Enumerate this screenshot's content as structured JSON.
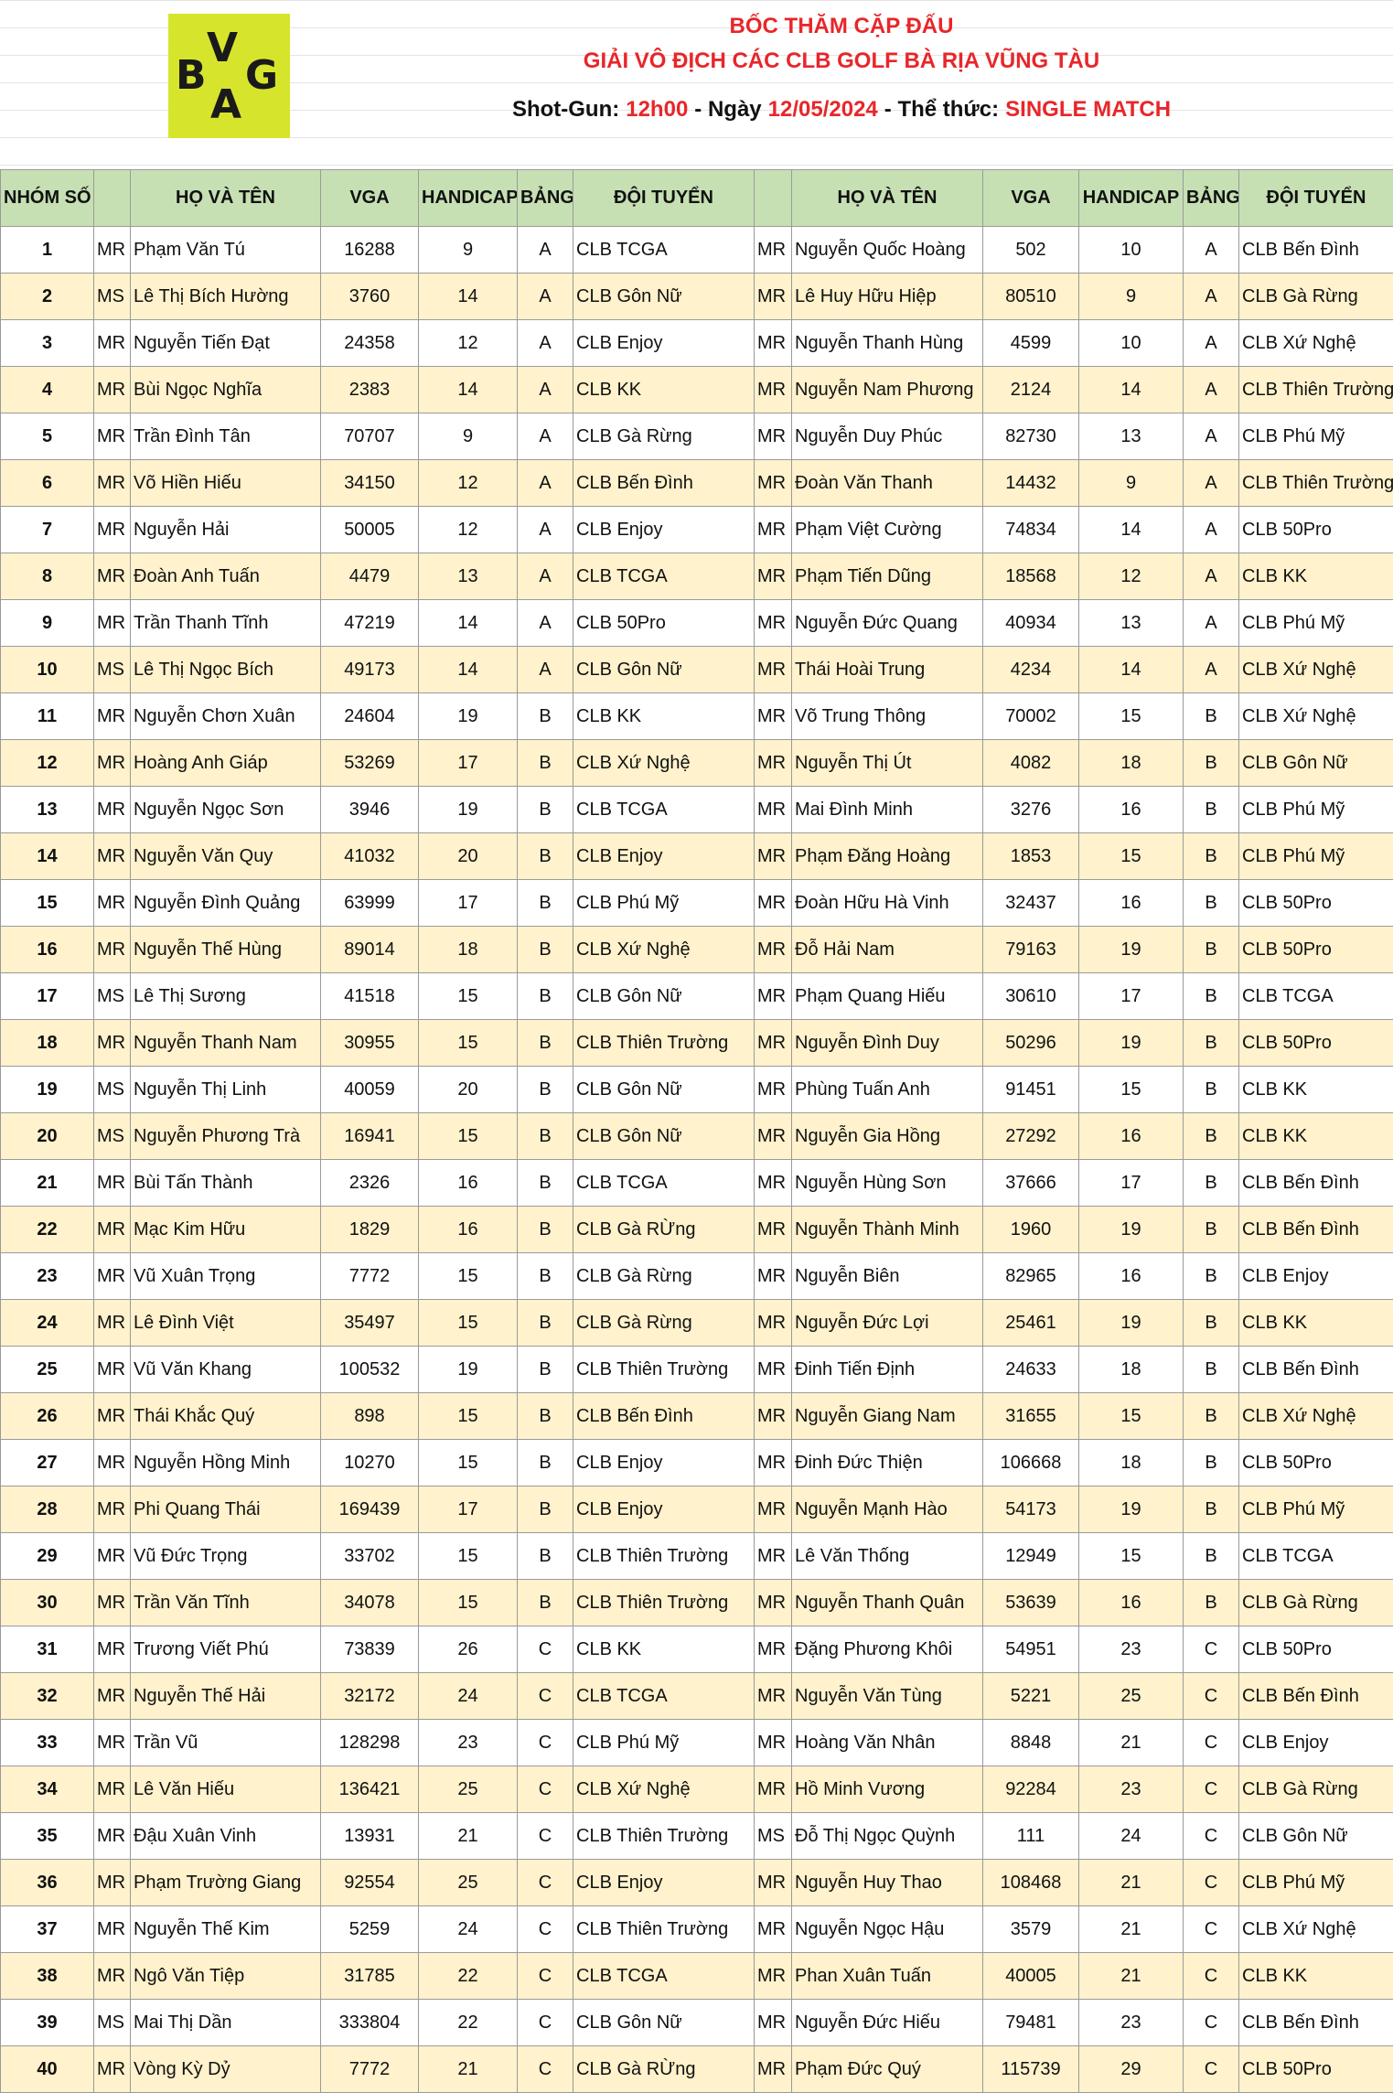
{
  "header": {
    "logo_letters": [
      "B",
      "V",
      "G",
      "A"
    ],
    "title": "BỐC THĂM CẶP ĐẤU",
    "subtitle": "GIẢI VÔ ĐỊCH CÁC CLB GOLF BÀ RỊA VŨNG TÀU",
    "info": [
      "Shot-Gun:",
      "12h00",
      "- Ngày",
      "12/05/2024",
      "- Thể thức:",
      "SINGLE MATCH"
    ]
  },
  "table": {
    "columns": [
      "NHÓM SỐ",
      null,
      "HỌ VÀ TÊN",
      "VGA",
      "HANDICAP",
      "BẢNG",
      "ĐỘI TUYỂN",
      null,
      "HỌ VÀ TÊN",
      "VGA",
      "HANDICAP",
      "BẢNG",
      "ĐỘI TUYỂN"
    ],
    "rows": [
      [
        1,
        "MR",
        "Phạm Văn Tú",
        16288,
        9,
        "A",
        "CLB TCGA",
        "MR",
        "Nguyễn Quốc Hoàng",
        502,
        10,
        "A",
        "CLB Bến Đình"
      ],
      [
        2,
        "MS",
        "Lê Thị Bích Hường",
        3760,
        14,
        "A",
        "CLB Gôn Nữ",
        "MR",
        "Lê Huy Hữu Hiệp",
        80510,
        9,
        "A",
        "CLB Gà Rừng"
      ],
      [
        3,
        "MR",
        "Nguyễn Tiến Đạt",
        24358,
        12,
        "A",
        "CLB Enjoy",
        "MR",
        "Nguyễn Thanh Hùng",
        4599,
        10,
        "A",
        "CLB Xứ Nghệ"
      ],
      [
        4,
        "MR",
        "Bùi Ngọc Nghĩa",
        2383,
        14,
        "A",
        "CLB KK",
        "MR",
        "Nguyễn Nam Phương",
        2124,
        14,
        "A",
        "CLB Thiên Trường"
      ],
      [
        5,
        "MR",
        "Trần Đình Tân",
        70707,
        9,
        "A",
        "CLB Gà Rừng",
        "MR",
        "Nguyễn Duy Phúc",
        82730,
        13,
        "A",
        "CLB Phú Mỹ"
      ],
      [
        6,
        "MR",
        "Võ Hiền Hiếu",
        34150,
        12,
        "A",
        "CLB Bến Đình",
        "MR",
        "Đoàn Văn Thanh",
        14432,
        9,
        "A",
        "CLB Thiên Trường"
      ],
      [
        7,
        "MR",
        "Nguyễn Hải",
        50005,
        12,
        "A",
        "CLB Enjoy",
        "MR",
        "Phạm Việt Cường",
        74834,
        14,
        "A",
        "CLB 50Pro"
      ],
      [
        8,
        "MR",
        "Đoàn Anh Tuấn",
        4479,
        13,
        "A",
        "CLB TCGA",
        "MR",
        "Phạm Tiến Dũng",
        18568,
        12,
        "A",
        "CLB KK"
      ],
      [
        9,
        "MR",
        "Trần Thanh Tĩnh",
        47219,
        14,
        "A",
        "CLB 50Pro",
        "MR",
        "Nguyễn Đức Quang",
        40934,
        13,
        "A",
        "CLB Phú Mỹ"
      ],
      [
        10,
        "MS",
        "Lê Thị Ngọc Bích",
        49173,
        14,
        "A",
        "CLB Gôn Nữ",
        "MR",
        "Thái Hoài Trung",
        4234,
        14,
        "A",
        "CLB Xứ Nghệ"
      ],
      [
        11,
        "MR",
        "Nguyễn Chơn Xuân",
        24604,
        19,
        "B",
        "CLB KK",
        "MR",
        "Võ Trung Thông",
        70002,
        15,
        "B",
        "CLB Xứ Nghệ"
      ],
      [
        12,
        "MR",
        "Hoàng Anh Giáp",
        53269,
        17,
        "B",
        "CLB Xứ Nghệ",
        "MR",
        "Nguyễn Thị Út",
        4082,
        18,
        "B",
        "CLB Gôn Nữ"
      ],
      [
        13,
        "MR",
        "Nguyễn Ngọc Sơn",
        3946,
        19,
        "B",
        "CLB TCGA",
        "MR",
        "Mai Đình Minh",
        3276,
        16,
        "B",
        "CLB Phú Mỹ"
      ],
      [
        14,
        "MR",
        "Nguyễn Văn Quy",
        41032,
        20,
        "B",
        "CLB Enjoy",
        "MR",
        "Phạm Đăng Hoàng",
        1853,
        15,
        "B",
        "CLB Phú Mỹ"
      ],
      [
        15,
        "MR",
        "Nguyễn Đình Quảng",
        63999,
        17,
        "B",
        "CLB Phú Mỹ",
        "MR",
        "Đoàn Hữu Hà Vinh",
        32437,
        16,
        "B",
        "CLB 50Pro"
      ],
      [
        16,
        "MR",
        "Nguyễn Thế Hùng",
        89014,
        18,
        "B",
        "CLB Xứ Nghệ",
        "MR",
        "Đỗ Hải Nam",
        79163,
        19,
        "B",
        "CLB 50Pro"
      ],
      [
        17,
        "MS",
        "Lê Thị Sương",
        41518,
        15,
        "B",
        "CLB Gôn Nữ",
        "MR",
        "Phạm Quang Hiếu",
        30610,
        17,
        "B",
        "CLB TCGA"
      ],
      [
        18,
        "MR",
        "Nguyễn Thanh Nam",
        30955,
        15,
        "B",
        "CLB Thiên Trường",
        "MR",
        "Nguyễn Đình Duy",
        50296,
        19,
        "B",
        "CLB 50Pro"
      ],
      [
        19,
        "MS",
        "Nguyễn Thị Linh",
        40059,
        20,
        "B",
        "CLB Gôn Nữ",
        "MR",
        "Phùng Tuấn Anh",
        91451,
        15,
        "B",
        "CLB KK"
      ],
      [
        20,
        "MS",
        "Nguyễn Phương Trà",
        16941,
        15,
        "B",
        "CLB Gôn Nữ",
        "MR",
        "Nguyễn Gia Hồng",
        27292,
        16,
        "B",
        "CLB KK"
      ],
      [
        21,
        "MR",
        "Bùi Tấn Thành",
        2326,
        16,
        "B",
        "CLB TCGA",
        "MR",
        "Nguyễn Hùng Sơn",
        37666,
        17,
        "B",
        "CLB Bến Đình"
      ],
      [
        22,
        "MR",
        "Mạc Kim Hữu",
        1829,
        16,
        "B",
        "CLB Gà RỪng",
        "MR",
        "Nguyễn Thành Minh",
        1960,
        19,
        "B",
        "CLB Bến Đình"
      ],
      [
        23,
        "MR",
        "Vũ Xuân Trọng",
        7772,
        15,
        "B",
        "CLB Gà Rừng",
        "MR",
        "Nguyễn Biên",
        82965,
        16,
        "B",
        "CLB Enjoy"
      ],
      [
        24,
        "MR",
        "Lê Đình Việt",
        35497,
        15,
        "B",
        "CLB Gà Rừng",
        "MR",
        "Nguyễn Đức Lợi",
        25461,
        19,
        "B",
        "CLB KK"
      ],
      [
        25,
        "MR",
        "Vũ Văn Khang",
        100532,
        19,
        "B",
        "CLB Thiên Trường",
        "MR",
        "Đinh Tiến Định",
        24633,
        18,
        "B",
        "CLB Bến Đình"
      ],
      [
        26,
        "MR",
        "Thái Khắc Quý",
        898,
        15,
        "B",
        "CLB Bến Đình",
        "MR",
        "Nguyễn Giang Nam",
        31655,
        15,
        "B",
        "CLB Xứ Nghệ"
      ],
      [
        27,
        "MR",
        "Nguyễn Hồng Minh",
        10270,
        15,
        "B",
        "CLB Enjoy",
        "MR",
        "Đinh Đức Thiện",
        106668,
        18,
        "B",
        "CLB 50Pro"
      ],
      [
        28,
        "MR",
        "Phi Quang Thái",
        169439,
        17,
        "B",
        "CLB Enjoy",
        "MR",
        "Nguyễn Mạnh Hào",
        54173,
        19,
        "B",
        "CLB Phú Mỹ"
      ],
      [
        29,
        "MR",
        "Vũ Đức Trọng",
        33702,
        15,
        "B",
        "CLB Thiên Trường",
        "MR",
        "Lê Văn Thống",
        12949,
        15,
        "B",
        "CLB TCGA"
      ],
      [
        30,
        "MR",
        "Trần Văn Tĩnh",
        34078,
        15,
        "B",
        "CLB Thiên Trường",
        "MR",
        "Nguyễn Thanh Quân",
        53639,
        16,
        "B",
        "CLB Gà Rừng"
      ],
      [
        31,
        "MR",
        "Trương Viết Phú",
        73839,
        26,
        "C",
        "CLB KK",
        "MR",
        "Đặng Phương Khôi",
        54951,
        23,
        "C",
        "CLB 50Pro"
      ],
      [
        32,
        "MR",
        "Nguyễn Thế Hải",
        32172,
        24,
        "C",
        "CLB TCGA",
        "MR",
        "Nguyễn Văn Tùng",
        5221,
        25,
        "C",
        "CLB Bến Đình"
      ],
      [
        33,
        "MR",
        "Trần Vũ",
        128298,
        23,
        "C",
        "CLB Phú Mỹ",
        "MR",
        "Hoàng Văn Nhân",
        8848,
        21,
        "C",
        "CLB Enjoy"
      ],
      [
        34,
        "MR",
        "Lê Văn Hiếu",
        136421,
        25,
        "C",
        "CLB Xứ Nghệ",
        "MR",
        "Hồ Minh Vương",
        92284,
        23,
        "C",
        "CLB Gà Rừng"
      ],
      [
        35,
        "MR",
        "Đậu Xuân Vinh",
        13931,
        21,
        "C",
        "CLB Thiên Trường",
        "MS",
        "Đỗ Thị Ngọc Quỳnh",
        111,
        24,
        "C",
        "CLB Gôn Nữ"
      ],
      [
        36,
        "MR",
        "Phạm Trường Giang",
        92554,
        25,
        "C",
        "CLB Enjoy",
        "MR",
        "Nguyễn Huy Thao",
        108468,
        21,
        "C",
        "CLB Phú Mỹ"
      ],
      [
        37,
        "MR",
        "Nguyễn Thế Kim",
        5259,
        24,
        "C",
        "CLB Thiên Trường",
        "MR",
        "Nguyễn Ngọc Hậu",
        3579,
        21,
        "C",
        "CLB Xứ Nghệ"
      ],
      [
        38,
        "MR",
        "Ngô Văn Tiệp",
        31785,
        22,
        "C",
        "CLB TCGA",
        "MR",
        "Phan Xuân Tuấn",
        40005,
        21,
        "C",
        "CLB KK"
      ],
      [
        39,
        "MS",
        "Mai Thị Dần",
        333804,
        22,
        "C",
        "CLB Gôn Nữ",
        "MR",
        "Nguyễn Đức Hiếu",
        79481,
        23,
        "C",
        "CLB Bến Đình"
      ],
      [
        40,
        "MR",
        "Vòng Kỳ Dỷ",
        7772,
        21,
        "C",
        "CLB Gà RỪng",
        "MR",
        "Phạm Đức Quý",
        115739,
        29,
        "C",
        "CLB 50Pro"
      ]
    ]
  }
}
